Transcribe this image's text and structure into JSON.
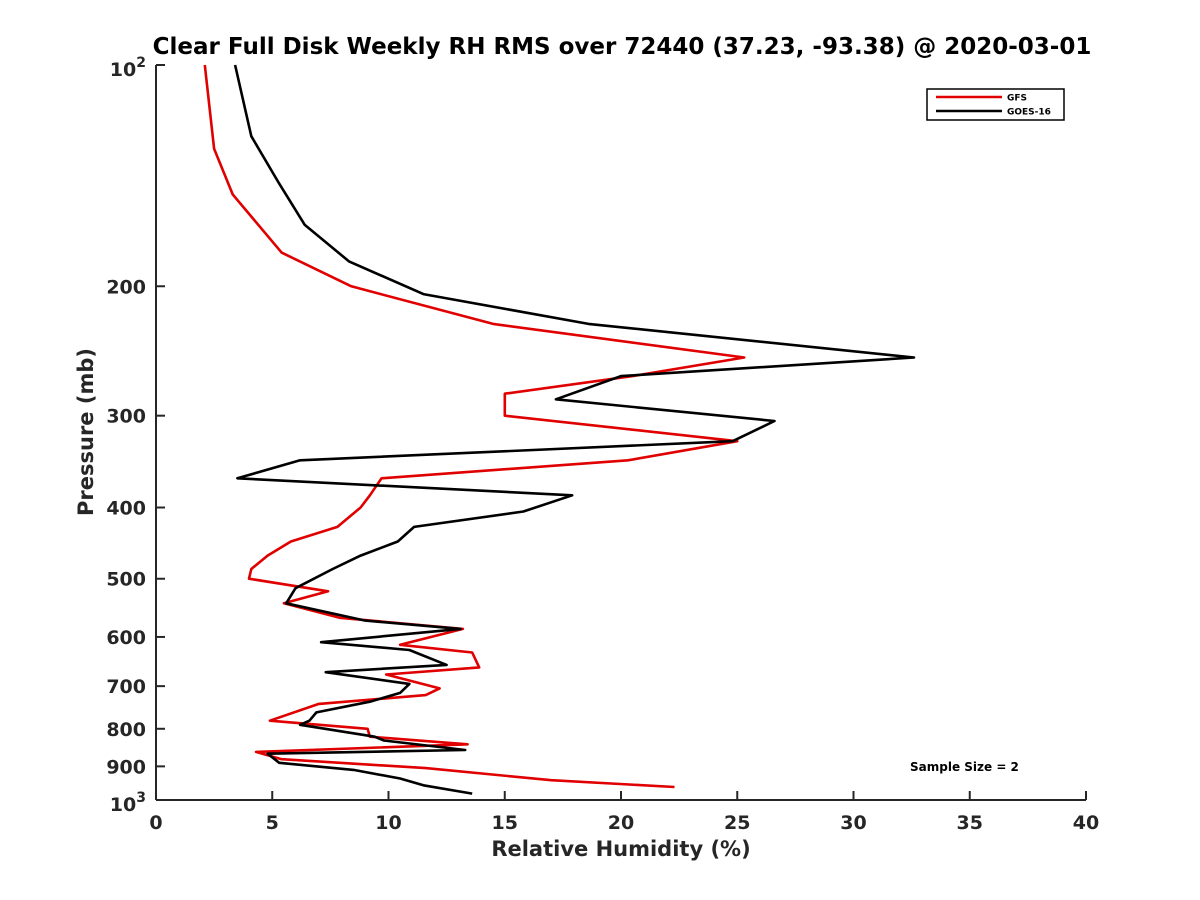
{
  "chart_data": {
    "type": "line",
    "title": "Clear Full Disk Weekly RH RMS over 72440 (37.23, -93.38) @ 2020-03-01",
    "xlabel": "Relative Humidity (%)",
    "ylabel": "Pressure (mb)",
    "xlim": [
      0,
      40
    ],
    "ylim": [
      100,
      1000
    ],
    "y_scale": "log",
    "y_reversed": true,
    "grid": false,
    "legend_position": "top-right",
    "x_ticks": [
      0,
      5,
      10,
      15,
      20,
      25,
      30,
      35,
      40
    ],
    "x_tick_labels": [
      "0",
      "5",
      "10",
      "15",
      "20",
      "25",
      "30",
      "35",
      "40"
    ],
    "y_ticks": [
      200,
      300,
      400,
      500,
      600,
      700,
      800,
      900
    ],
    "y_tick_labels": [
      "200",
      "300",
      "400",
      "500",
      "600",
      "700",
      "800",
      "900"
    ],
    "y_end_labels": [
      {
        "value": 100,
        "base": "10",
        "exp": "2"
      },
      {
        "value": 1000,
        "base": "10",
        "exp": "3"
      }
    ],
    "series": [
      {
        "name": "GFS",
        "color": "#e00000",
        "x": [
          2.1,
          2.5,
          3.3,
          5.4,
          8.4,
          14.5,
          25.3,
          20.5,
          15.0,
          15.0,
          25.0,
          20.3,
          9.7,
          9.2,
          8.8,
          7.8,
          5.8,
          4.8,
          4.1,
          4.0,
          7.4,
          5.5,
          7.9,
          13.2,
          10.5,
          13.6,
          13.9,
          9.9,
          12.2,
          11.6,
          7.0,
          4.9,
          9.1,
          9.2,
          13.4,
          4.3,
          5.4,
          11.6,
          17.0,
          22.3
        ],
        "y": [
          100,
          130,
          150,
          180,
          200,
          225,
          250,
          265,
          280,
          300,
          325,
          345,
          365,
          385,
          400,
          425,
          445,
          465,
          485,
          500,
          520,
          540,
          565,
          585,
          615,
          630,
          660,
          675,
          705,
          720,
          740,
          780,
          800,
          820,
          840,
          860,
          880,
          905,
          940,
          960
        ],
        "_dummy": null
      },
      {
        "name": "GOES-16",
        "color": "#000000",
        "x": [
          3.4,
          4.1,
          5.3,
          6.4,
          8.3,
          11.5,
          18.6,
          32.6,
          20.0,
          17.2,
          26.6,
          24.8,
          6.2,
          3.5,
          17.9,
          15.8,
          11.1,
          10.4,
          8.8,
          7.6,
          6.0,
          5.6,
          9.0,
          13.1,
          7.1,
          10.9,
          12.5,
          7.3,
          10.9,
          10.5,
          9.2,
          6.9,
          6.6,
          6.2,
          9.4,
          9.8,
          13.3,
          4.8,
          5.3,
          8.5,
          10.5,
          11.5,
          13.6
        ],
        "y": [
          100,
          125,
          145,
          165,
          185,
          205,
          225,
          250,
          265,
          285,
          305,
          325,
          345,
          365,
          385,
          405,
          425,
          445,
          465,
          485,
          515,
          540,
          570,
          585,
          610,
          625,
          655,
          670,
          695,
          715,
          735,
          760,
          780,
          790,
          820,
          830,
          855,
          865,
          890,
          910,
          935,
          955,
          980
        ]
      }
    ],
    "annotations": [
      "Sample Size = 2"
    ]
  }
}
